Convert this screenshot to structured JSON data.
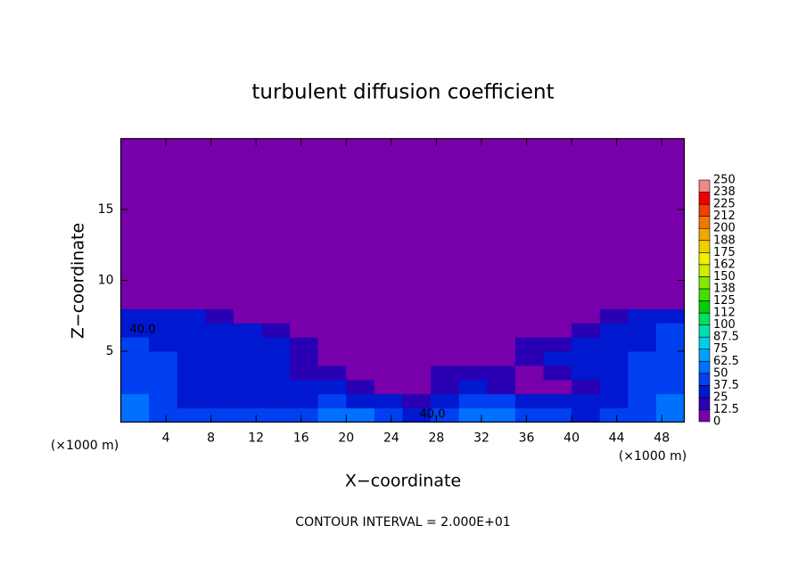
{
  "chart_data": {
    "type": "contour",
    "title": "turbulent diffusion coefficient",
    "xlabel": "X−coordinate",
    "ylabel": "Z−coordinate",
    "xunit": "(×1000 m)",
    "yunit": "(×1000 m)",
    "footer": "CONTOUR INTERVAL = 2.000E+01",
    "contour_labels": [
      "40.0",
      "40.0"
    ],
    "xlim": [
      0,
      50
    ],
    "ylim": [
      0,
      20
    ],
    "xticks": [
      4,
      8,
      12,
      16,
      20,
      24,
      28,
      32,
      36,
      40,
      44,
      48
    ],
    "yticks": [
      5,
      10,
      15
    ],
    "colorbar": {
      "levels": [
        0,
        12.5,
        25,
        37.5,
        50,
        62.5,
        75,
        87.5,
        100,
        {
          "value": 112.5,
          "label": "112"
        },
        125,
        {
          "value": 137.5,
          "label": "138"
        },
        150,
        {
          "value": 162.5,
          "label": "162"
        },
        175,
        {
          "value": 187.5,
          "label": "188"
        },
        200,
        {
          "value": 212.5,
          "label": "212"
        },
        225,
        {
          "value": 237.5,
          "label": "238"
        },
        250
      ],
      "colors": [
        "#7800aa",
        "#2a00b4",
        "#0018d0",
        "#0040f0",
        "#0070ff",
        "#00a0ff",
        "#00cfe8",
        "#00e0a8",
        "#00e060",
        "#00d000",
        "#40e000",
        "#88e800",
        "#c8f000",
        "#f0f000",
        "#f0d000",
        "#f0a800",
        "#f07800",
        "#f04000",
        "#f00000",
        "#f08888"
      ]
    },
    "field": {
      "x_edges": [
        0,
        2.5,
        5,
        7.5,
        10,
        12.5,
        15,
        17.5,
        20,
        22.5,
        25,
        27.5,
        30,
        32.5,
        35,
        37.5,
        40,
        42.5,
        45,
        47.5,
        50
      ],
      "z_edges": [
        0,
        1,
        2,
        3,
        4,
        5,
        6,
        7,
        8,
        20
      ],
      "values": [
        [
          55,
          45,
          40,
          40,
          40,
          38,
          45,
          55,
          50,
          40,
          30,
          45,
          55,
          55,
          45,
          40,
          35,
          40,
          45,
          50
        ],
        [
          50,
          40,
          35,
          35,
          30,
          30,
          35,
          40,
          35,
          25,
          20,
          30,
          45,
          40,
          30,
          25,
          30,
          35,
          40,
          50
        ],
        [
          45,
          40,
          35,
          30,
          25,
          25,
          25,
          30,
          20,
          10,
          10,
          20,
          25,
          20,
          10,
          10,
          20,
          30,
          40,
          45
        ],
        [
          45,
          40,
          35,
          30,
          25,
          25,
          20,
          15,
          10,
          5,
          10,
          15,
          20,
          15,
          10,
          15,
          25,
          30,
          40,
          45
        ],
        [
          40,
          40,
          35,
          30,
          30,
          25,
          20,
          10,
          5,
          5,
          5,
          5,
          5,
          10,
          15,
          25,
          30,
          30,
          40,
          40
        ],
        [
          40,
          35,
          35,
          30,
          30,
          25,
          15,
          5,
          0,
          0,
          0,
          0,
          0,
          5,
          15,
          20,
          25,
          30,
          35,
          40
        ],
        [
          35,
          35,
          30,
          30,
          25,
          15,
          5,
          0,
          0,
          0,
          0,
          0,
          0,
          0,
          5,
          10,
          20,
          25,
          30,
          40
        ],
        [
          30,
          30,
          30,
          20,
          10,
          5,
          0,
          0,
          0,
          0,
          0,
          0,
          0,
          0,
          0,
          0,
          5,
          15,
          25,
          35
        ],
        [
          0,
          0,
          0,
          0,
          0,
          0,
          0,
          0,
          0,
          0,
          0,
          0,
          0,
          0,
          0,
          0,
          0,
          0,
          0,
          0
        ]
      ]
    }
  }
}
